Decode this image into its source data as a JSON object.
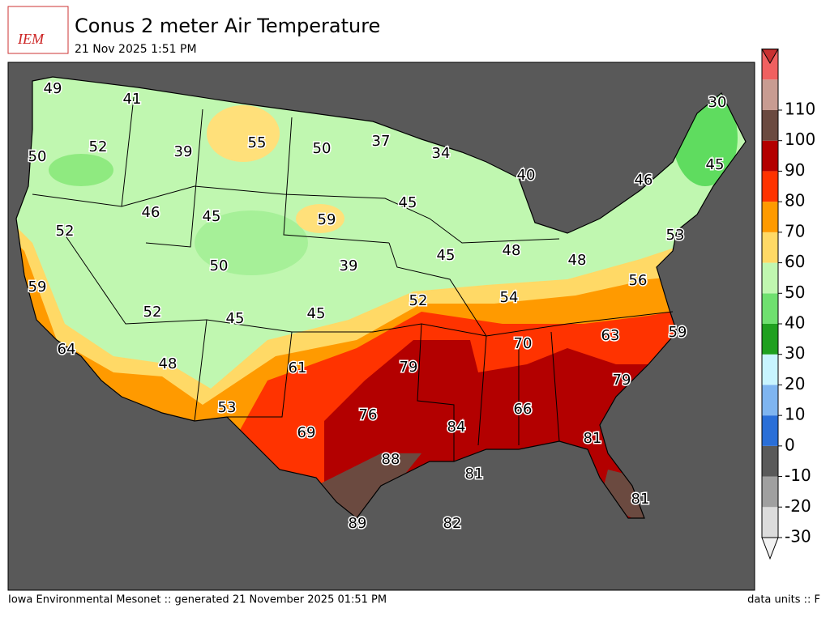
{
  "header": {
    "logo": "IEM",
    "title": "Conus 2 meter Air Temperature",
    "subtitle": "21 Nov 2025 1:51 PM"
  },
  "map": {
    "labels": [
      49,
      41,
      52,
      50,
      39,
      55,
      50,
      37,
      34,
      40,
      30,
      46,
      45,
      46,
      45,
      59,
      45,
      52,
      53,
      45,
      48,
      48,
      39,
      50,
      56,
      59,
      52,
      54,
      52,
      45,
      45,
      63,
      59,
      64,
      70,
      48,
      61,
      79,
      79,
      66,
      76,
      53,
      84,
      69,
      81,
      88,
      81,
      81,
      89,
      82
    ]
  },
  "colorbar": {
    "ticks": [
      -30,
      -20,
      -10,
      0,
      10,
      20,
      30,
      40,
      50,
      60,
      70,
      80,
      90,
      100,
      110
    ],
    "colors": [
      "#dcdcdc",
      "#a0a0a0",
      "#5a5a5a",
      "#2a6fd8",
      "#7fb5f0",
      "#c8f4ff",
      "#1fa01f",
      "#6fe06f",
      "#c0f7b0",
      "#ffd966",
      "#ff9a00",
      "#ff3300",
      "#b30000",
      "#6b4a40",
      "#c89c92",
      "#f06060"
    ]
  },
  "footer": {
    "left": "Iowa Environmental Mesonet :: generated 21 November 2025 01:51 PM",
    "right": "data units :: F"
  }
}
